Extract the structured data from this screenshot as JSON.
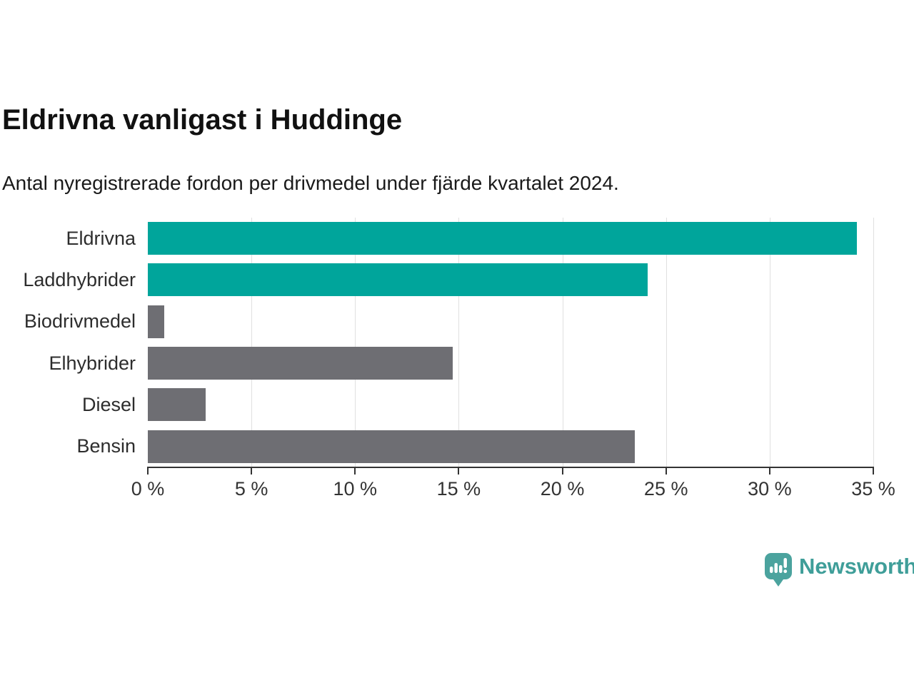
{
  "page": {
    "title": "Eldrivna vanligast i Huddinge",
    "subtitle": "Antal nyregistrerade fordon per drivmedel under fjärde kvartalet 2024."
  },
  "chart_data": {
    "type": "bar",
    "orientation": "horizontal",
    "title": "Eldrivna vanligast i Huddinge",
    "subtitle": "Antal nyregistrerade fordon per drivmedel under fjärde kvartalet 2024.",
    "categories": [
      "Eldrivna",
      "Laddhybrider",
      "Biodrivmedel",
      "Elhybrider",
      "Diesel",
      "Bensin"
    ],
    "values": [
      34.2,
      24.1,
      0.8,
      14.7,
      2.8,
      23.5
    ],
    "unit": "%",
    "xlabel": "",
    "ylabel": "",
    "xlim": [
      0,
      35
    ],
    "x_ticks": [
      0,
      5,
      10,
      15,
      20,
      25,
      30,
      35
    ],
    "tick_suffix": " %",
    "grid": "vertical",
    "legend": "none",
    "bar_colors": [
      "#00a59b",
      "#00a59b",
      "#6e6e73",
      "#6e6e73",
      "#6e6e73",
      "#6e6e73"
    ]
  },
  "branding": {
    "logo_text": "Newsworthy",
    "logo_icon": "newsworthy-speech-bubble-chart-icon",
    "logo_color": "#4ba39e"
  },
  "colors": {
    "background": "#ffffff",
    "bar_highlight": "#00a59b",
    "bar_default": "#6e6e73",
    "gridline": "#e0e0e0",
    "axis": "#333333",
    "text": "#1a1a1a"
  }
}
